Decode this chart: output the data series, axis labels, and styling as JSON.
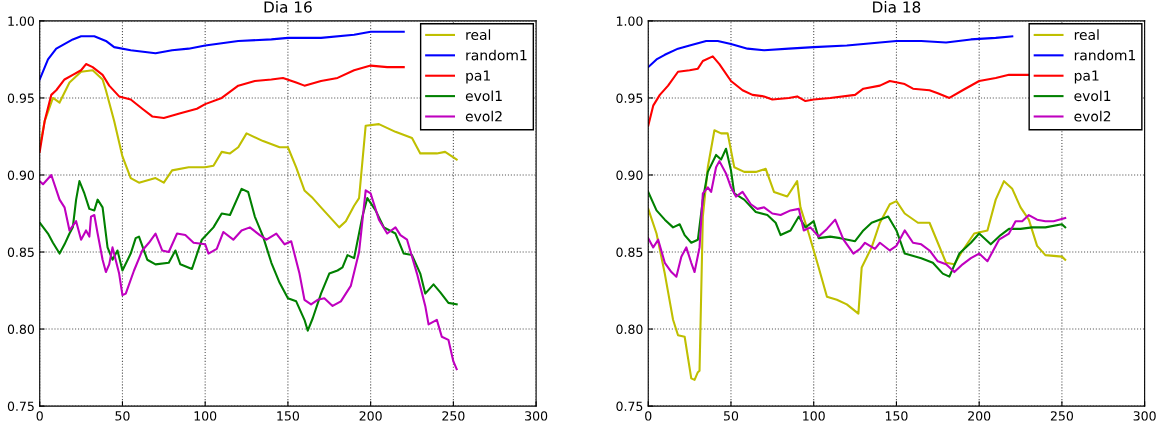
{
  "chart_data": [
    {
      "type": "line",
      "title": "Dia 16",
      "xlim": [
        0,
        300
      ],
      "ylim": [
        0.75,
        1.0
      ],
      "xticks": [
        0,
        50,
        100,
        150,
        200,
        250,
        300
      ],
      "yticks": [
        {
          "value": 0.75,
          "label": "0.75"
        },
        {
          "value": 0.8,
          "label": "0.80"
        },
        {
          "value": 0.85,
          "label": "0.85"
        },
        {
          "value": 0.9,
          "label": "0.90"
        },
        {
          "value": 0.95,
          "label": "0.95"
        },
        {
          "value": 1.0,
          "label": "1.00"
        }
      ],
      "grid": true,
      "legend": "top right",
      "series": [
        {
          "name": "real",
          "color": "#bfbf00",
          "x": [
            0,
            3,
            8,
            12,
            18,
            25,
            32,
            38,
            40,
            45,
            50,
            55,
            60,
            70,
            75,
            80,
            90,
            100,
            105,
            110,
            115,
            120,
            125,
            135,
            145,
            150,
            155,
            160,
            165,
            170,
            181,
            185,
            190,
            193,
            197,
            205,
            215,
            225,
            230,
            240,
            245,
            252
          ],
          "values": [
            0.918,
            0.935,
            0.95,
            0.947,
            0.96,
            0.967,
            0.968,
            0.962,
            0.955,
            0.935,
            0.912,
            0.898,
            0.895,
            0.898,
            0.895,
            0.903,
            0.905,
            0.905,
            0.906,
            0.915,
            0.914,
            0.918,
            0.927,
            0.922,
            0.918,
            0.918,
            0.905,
            0.89,
            0.885,
            0.879,
            0.866,
            0.87,
            0.88,
            0.885,
            0.932,
            0.933,
            0.928,
            0.924,
            0.914,
            0.914,
            0.915,
            0.91
          ]
        },
        {
          "name": "random1",
          "color": "#0000ff",
          "x": [
            0,
            5,
            10,
            20,
            25,
            33,
            40,
            45,
            55,
            70,
            80,
            90,
            100,
            120,
            140,
            150,
            170,
            190,
            200,
            220
          ],
          "values": [
            0.962,
            0.975,
            0.982,
            0.988,
            0.99,
            0.99,
            0.987,
            0.983,
            0.981,
            0.979,
            0.981,
            0.982,
            0.984,
            0.987,
            0.988,
            0.989,
            0.989,
            0.991,
            0.993,
            0.993
          ]
        },
        {
          "name": "pa1",
          "color": "#ff0000",
          "x": [
            0,
            3,
            7,
            10,
            15,
            20,
            25,
            28,
            32,
            38,
            42,
            48,
            55,
            62,
            68,
            75,
            85,
            95,
            100,
            110,
            120,
            130,
            140,
            147,
            155,
            160,
            170,
            180,
            190,
            200,
            210,
            220
          ],
          "values": [
            0.915,
            0.935,
            0.952,
            0.955,
            0.962,
            0.965,
            0.968,
            0.972,
            0.97,
            0.965,
            0.958,
            0.951,
            0.949,
            0.943,
            0.938,
            0.937,
            0.94,
            0.943,
            0.946,
            0.95,
            0.958,
            0.961,
            0.962,
            0.963,
            0.96,
            0.958,
            0.961,
            0.963,
            0.968,
            0.971,
            0.97,
            0.97
          ]
        },
        {
          "name": "evol1",
          "color": "#008000",
          "x": [
            0,
            5,
            8,
            12,
            15,
            18,
            20,
            22,
            24,
            27,
            30,
            33,
            35,
            38,
            41,
            44,
            47,
            50,
            55,
            58,
            60,
            65,
            70,
            78,
            82,
            85,
            92,
            98,
            105,
            110,
            115,
            122,
            126,
            130,
            135,
            140,
            145,
            150,
            155,
            160,
            162,
            165,
            170,
            175,
            180,
            183,
            186,
            190,
            195,
            198,
            203,
            208,
            215,
            220,
            225,
            230,
            233,
            238,
            242,
            247,
            252
          ],
          "values": [
            0.869,
            0.862,
            0.856,
            0.849,
            0.855,
            0.862,
            0.866,
            0.884,
            0.896,
            0.888,
            0.878,
            0.877,
            0.884,
            0.879,
            0.853,
            0.845,
            0.851,
            0.838,
            0.849,
            0.859,
            0.86,
            0.845,
            0.842,
            0.843,
            0.851,
            0.842,
            0.839,
            0.858,
            0.866,
            0.875,
            0.874,
            0.891,
            0.889,
            0.873,
            0.86,
            0.843,
            0.83,
            0.82,
            0.818,
            0.806,
            0.799,
            0.807,
            0.823,
            0.836,
            0.838,
            0.84,
            0.848,
            0.846,
            0.873,
            0.885,
            0.877,
            0.866,
            0.862,
            0.849,
            0.848,
            0.836,
            0.823,
            0.829,
            0.824,
            0.817,
            0.816
          ]
        },
        {
          "name": "evol2",
          "color": "#bf00bf",
          "x": [
            0,
            2,
            7,
            12,
            15,
            18,
            22,
            25,
            28,
            30,
            31,
            33,
            35,
            38,
            40,
            42,
            44,
            48,
            50,
            52,
            57,
            62,
            66,
            70,
            74,
            78,
            83,
            88,
            93,
            100,
            102,
            107,
            111,
            117,
            122,
            127,
            133,
            137,
            143,
            148,
            152,
            157,
            160,
            164,
            168,
            172,
            177,
            182,
            188,
            193,
            197,
            200,
            205,
            210,
            215,
            218,
            222,
            228,
            233,
            235,
            240,
            243,
            247,
            250,
            252
          ],
          "values": [
            0.896,
            0.894,
            0.9,
            0.884,
            0.879,
            0.864,
            0.87,
            0.858,
            0.864,
            0.86,
            0.873,
            0.874,
            0.862,
            0.845,
            0.837,
            0.842,
            0.853,
            0.836,
            0.822,
            0.823,
            0.838,
            0.851,
            0.856,
            0.862,
            0.851,
            0.85,
            0.862,
            0.861,
            0.856,
            0.855,
            0.849,
            0.852,
            0.863,
            0.858,
            0.864,
            0.866,
            0.861,
            0.858,
            0.862,
            0.855,
            0.857,
            0.836,
            0.819,
            0.816,
            0.819,
            0.82,
            0.815,
            0.818,
            0.828,
            0.85,
            0.89,
            0.888,
            0.871,
            0.862,
            0.866,
            0.861,
            0.858,
            0.836,
            0.815,
            0.803,
            0.806,
            0.795,
            0.793,
            0.779,
            0.774
          ]
        }
      ]
    },
    {
      "type": "line",
      "title": "Dia 18",
      "xlim": [
        0,
        300
      ],
      "ylim": [
        0.75,
        1.0
      ],
      "xticks": [
        0,
        50,
        100,
        150,
        200,
        250,
        300
      ],
      "yticks": [
        {
          "value": 0.75,
          "label": "0.75"
        },
        {
          "value": 0.8,
          "label": "0.80"
        },
        {
          "value": 0.85,
          "label": "0.85"
        },
        {
          "value": 0.9,
          "label": "0.90"
        },
        {
          "value": 0.95,
          "label": "0.95"
        },
        {
          "value": 1.0,
          "label": "1.00"
        }
      ],
      "grid": true,
      "legend": "top right",
      "series": [
        {
          "name": "real",
          "color": "#bfbf00",
          "x": [
            0,
            5,
            10,
            15,
            18,
            22,
            26,
            28,
            30,
            31,
            33,
            36,
            40,
            44,
            48,
            52,
            58,
            65,
            71,
            76,
            84,
            90,
            92,
            97,
            103,
            108,
            114,
            120,
            127,
            129,
            135,
            140,
            146,
            150,
            155,
            163,
            170,
            175,
            180,
            185,
            190,
            197,
            205,
            210,
            215,
            220,
            225,
            230,
            235,
            240,
            250,
            252
          ],
          "values": [
            0.878,
            0.862,
            0.836,
            0.806,
            0.796,
            0.795,
            0.768,
            0.767,
            0.772,
            0.773,
            0.873,
            0.905,
            0.929,
            0.927,
            0.927,
            0.905,
            0.902,
            0.902,
            0.904,
            0.889,
            0.886,
            0.896,
            0.879,
            0.862,
            0.84,
            0.821,
            0.819,
            0.816,
            0.81,
            0.84,
            0.853,
            0.869,
            0.881,
            0.883,
            0.875,
            0.869,
            0.869,
            0.856,
            0.843,
            0.842,
            0.851,
            0.862,
            0.864,
            0.884,
            0.896,
            0.891,
            0.879,
            0.871,
            0.854,
            0.848,
            0.847,
            0.845
          ]
        },
        {
          "name": "random1",
          "color": "#0000ff",
          "x": [
            0,
            5,
            10,
            18,
            25,
            35,
            42,
            50,
            60,
            70,
            85,
            100,
            120,
            140,
            150,
            165,
            180,
            195,
            210,
            220
          ],
          "values": [
            0.97,
            0.975,
            0.978,
            0.982,
            0.984,
            0.987,
            0.987,
            0.985,
            0.982,
            0.981,
            0.982,
            0.983,
            0.984,
            0.986,
            0.987,
            0.987,
            0.986,
            0.988,
            0.989,
            0.99
          ]
        },
        {
          "name": "pa1",
          "color": "#ff0000",
          "x": [
            0,
            3,
            7,
            12,
            18,
            25,
            30,
            33,
            39,
            43,
            50,
            57,
            63,
            70,
            75,
            85,
            90,
            95,
            100,
            110,
            125,
            130,
            140,
            146,
            155,
            160,
            170,
            175,
            182,
            190,
            200,
            210,
            218,
            250
          ],
          "values": [
            0.932,
            0.945,
            0.952,
            0.958,
            0.967,
            0.968,
            0.969,
            0.974,
            0.977,
            0.972,
            0.961,
            0.955,
            0.952,
            0.951,
            0.949,
            0.95,
            0.951,
            0.948,
            0.949,
            0.95,
            0.952,
            0.956,
            0.958,
            0.961,
            0.959,
            0.956,
            0.955,
            0.953,
            0.95,
            0.955,
            0.961,
            0.963,
            0.965,
            0.965
          ]
        },
        {
          "name": "evol1",
          "color": "#008000",
          "x": [
            0,
            5,
            10,
            15,
            19,
            22,
            26,
            30,
            33,
            36,
            41,
            44,
            47,
            50,
            52,
            58,
            65,
            72,
            77,
            80,
            86,
            91,
            95,
            100,
            103,
            110,
            116,
            125,
            130,
            135,
            145,
            150,
            155,
            165,
            172,
            178,
            182,
            188,
            195,
            200,
            207,
            213,
            218,
            225,
            232,
            240,
            250,
            252
          ],
          "values": [
            0.889,
            0.877,
            0.871,
            0.866,
            0.868,
            0.861,
            0.856,
            0.858,
            0.884,
            0.902,
            0.913,
            0.91,
            0.917,
            0.903,
            0.888,
            0.884,
            0.876,
            0.874,
            0.869,
            0.861,
            0.864,
            0.873,
            0.866,
            0.87,
            0.859,
            0.86,
            0.859,
            0.857,
            0.864,
            0.869,
            0.873,
            0.864,
            0.849,
            0.846,
            0.843,
            0.836,
            0.834,
            0.849,
            0.856,
            0.862,
            0.855,
            0.861,
            0.865,
            0.865,
            0.866,
            0.866,
            0.868,
            0.866
          ]
        },
        {
          "name": "evol2",
          "color": "#bf00bf",
          "x": [
            0,
            3,
            6,
            10,
            14,
            17,
            20,
            23,
            26,
            28,
            31,
            33,
            36,
            38,
            41,
            43,
            47,
            50,
            53,
            57,
            62,
            66,
            70,
            75,
            80,
            86,
            91,
            94,
            98,
            103,
            108,
            113,
            118,
            124,
            128,
            131,
            137,
            140,
            146,
            150,
            155,
            160,
            165,
            170,
            175,
            180,
            185,
            190,
            195,
            200,
            205,
            208,
            212,
            218,
            222,
            226,
            230,
            235,
            240,
            245,
            252
          ],
          "values": [
            0.859,
            0.853,
            0.858,
            0.843,
            0.837,
            0.834,
            0.847,
            0.853,
            0.843,
            0.837,
            0.853,
            0.888,
            0.892,
            0.889,
            0.905,
            0.909,
            0.901,
            0.892,
            0.886,
            0.889,
            0.881,
            0.878,
            0.879,
            0.875,
            0.874,
            0.877,
            0.878,
            0.864,
            0.866,
            0.86,
            0.865,
            0.871,
            0.858,
            0.849,
            0.852,
            0.856,
            0.852,
            0.856,
            0.851,
            0.854,
            0.864,
            0.856,
            0.855,
            0.851,
            0.844,
            0.842,
            0.837,
            0.842,
            0.846,
            0.849,
            0.844,
            0.85,
            0.858,
            0.862,
            0.87,
            0.87,
            0.874,
            0.871,
            0.87,
            0.87,
            0.872
          ]
        }
      ]
    }
  ]
}
